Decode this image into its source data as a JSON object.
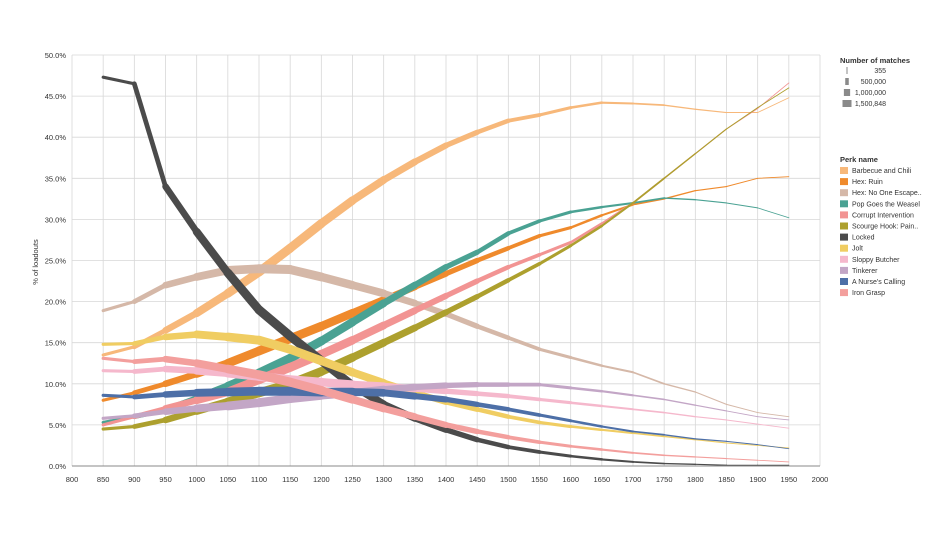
{
  "chart_data": {
    "type": "line",
    "ylabel": "% of loadouts",
    "xlabel": "",
    "xlim": [
      800,
      2000
    ],
    "ylim": [
      0,
      50
    ],
    "x_ticks": [
      "800",
      "850",
      "900",
      "950",
      "1000",
      "1050",
      "1100",
      "1150",
      "1200",
      "1250",
      "1300",
      "1350",
      "1400",
      "1450",
      "1500",
      "1550",
      "1600",
      "1650",
      "1700",
      "1750",
      "1800",
      "1850",
      "1900",
      "1950",
      "2000"
    ],
    "y_ticks": [
      "0.0%",
      "5.0%",
      "10.0%",
      "15.0%",
      "20.0%",
      "25.0%",
      "30.0%",
      "35.0%",
      "40.0%",
      "45.0%",
      "50.0%"
    ],
    "grid": true,
    "size_legend": {
      "title": "Number of matches",
      "entries": [
        "355",
        "500,000",
        "1,000,000",
        "1,500,848"
      ]
    },
    "color_legend_title": "Perk name",
    "x": [
      850,
      900,
      950,
      1000,
      1050,
      1100,
      1150,
      1200,
      1250,
      1300,
      1350,
      1400,
      1450,
      1500,
      1550,
      1600,
      1650,
      1700,
      1750,
      1800,
      1850,
      1900,
      1950
    ],
    "matches": [
      300000,
      550000,
      900000,
      1200000,
      1400000,
      1500000,
      1500848,
      1450000,
      1350000,
      1200000,
      1050000,
      900000,
      750000,
      600000,
      470000,
      360000,
      270000,
      190000,
      130000,
      80000,
      45000,
      20000,
      355
    ],
    "series": [
      {
        "name": "Barbecue and Chili",
        "color": "#f7b87a",
        "values": [
          13.5,
          14.5,
          16.5,
          18.6,
          21,
          23.6,
          26.5,
          29.5,
          32.3,
          34.8,
          37,
          39,
          40.6,
          42,
          42.7,
          43.6,
          44.2,
          44.1,
          43.9,
          43.4,
          43,
          43,
          44.8
        ]
      },
      {
        "name": "Hex: Ruin",
        "color": "#ef8a2c",
        "values": [
          8,
          8.9,
          10,
          11.2,
          12.5,
          14,
          15.5,
          17,
          18.6,
          20.2,
          21.8,
          23.4,
          25,
          26.5,
          28,
          29,
          30.5,
          31.8,
          32.5,
          33.5,
          34,
          35,
          35.2
        ]
      },
      {
        "name": "Hex: No One Escape Death",
        "display_name": "Hex: No One Escape..",
        "color": "#d5b8a8",
        "values": [
          18.9,
          20,
          22,
          23,
          23.8,
          24,
          23.9,
          23,
          22,
          21,
          19.8,
          18.5,
          17,
          15.6,
          14.2,
          13.2,
          12.2,
          11.4,
          10,
          9,
          7.5,
          6.5,
          6
        ]
      },
      {
        "name": "Pop Goes the Weasel",
        "color": "#4aa293",
        "values": [
          5.3,
          6,
          6.8,
          8.2,
          9.7,
          11.3,
          13.1,
          15.2,
          17.5,
          19.8,
          22,
          24.2,
          26,
          28.3,
          29.8,
          30.9,
          31.5,
          32,
          32.6,
          32.4,
          32,
          31.4,
          30.2
        ]
      },
      {
        "name": "Corrupt Intervention",
        "color": "#f29493",
        "values": [
          5,
          6,
          7,
          8,
          9,
          10.5,
          12,
          13.6,
          15.3,
          17.1,
          18.9,
          20.7,
          22.5,
          24.2,
          25.7,
          27.2,
          29.5,
          32,
          35,
          38,
          41,
          43.5,
          46.6
        ]
      },
      {
        "name": "Scourge Hook: Pain Resonance",
        "display_name": "Scourge Hook: Pain..",
        "color": "#ada02e",
        "values": [
          4.5,
          4.8,
          5.6,
          6.7,
          7.8,
          8.9,
          10,
          11.5,
          13.2,
          15,
          16.8,
          18.7,
          20.6,
          22.6,
          24.6,
          26.8,
          29.2,
          32,
          35,
          38,
          41,
          43.6,
          46
        ]
      },
      {
        "name": "Locked",
        "color": "#4b4b4b",
        "values": [
          47.3,
          46.5,
          34,
          28.5,
          23.5,
          19,
          15.8,
          12.8,
          9.8,
          7.5,
          5.8,
          4.4,
          3.2,
          2.3,
          1.7,
          1.2,
          0.8,
          0.5,
          0.3,
          0.2,
          0.1,
          0.1,
          0.1
        ]
      },
      {
        "name": "Jolt",
        "color": "#f0cd62",
        "values": [
          14.8,
          14.9,
          15.7,
          16,
          15.7,
          15.3,
          14.2,
          12.8,
          11.4,
          10.1,
          8.9,
          7.8,
          6.9,
          6,
          5.3,
          4.8,
          4.4,
          4,
          3.6,
          3.2,
          2.8,
          2.5,
          2.2
        ]
      },
      {
        "name": "Sloppy Butcher",
        "color": "#f5b8cc",
        "values": [
          11.6,
          11.5,
          11.8,
          11.6,
          11.3,
          10.9,
          10.5,
          10.2,
          9.9,
          9.7,
          9.4,
          9.1,
          8.8,
          8.5,
          8.1,
          7.7,
          7.3,
          6.9,
          6.5,
          6,
          5.6,
          5.1,
          4.6
        ]
      },
      {
        "name": "Tinkerer",
        "color": "#c3a6c6",
        "values": [
          5.8,
          6.1,
          6.6,
          7,
          7.3,
          7.7,
          8.2,
          8.6,
          8.9,
          9.3,
          9.6,
          9.8,
          9.9,
          9.9,
          9.9,
          9.5,
          9.1,
          8.6,
          8.1,
          7.4,
          6.7,
          6,
          5.6
        ]
      },
      {
        "name": "A Nurse's Calling",
        "color": "#4d6fa7",
        "values": [
          8.6,
          8.4,
          8.7,
          8.9,
          9,
          9.1,
          9.1,
          9,
          9,
          8.9,
          8.5,
          8.1,
          7.5,
          6.9,
          6.2,
          5.5,
          4.8,
          4.2,
          3.8,
          3.3,
          3,
          2.6,
          2.1
        ]
      },
      {
        "name": "Iron Grasp",
        "color": "#f39f9d",
        "values": [
          13.1,
          12.7,
          13,
          12.5,
          11.8,
          11.1,
          10.2,
          9.2,
          8.1,
          7,
          6,
          5,
          4.2,
          3.5,
          2.9,
          2.4,
          2,
          1.6,
          1.3,
          1.1,
          0.9,
          0.7,
          0.5
        ]
      }
    ]
  }
}
